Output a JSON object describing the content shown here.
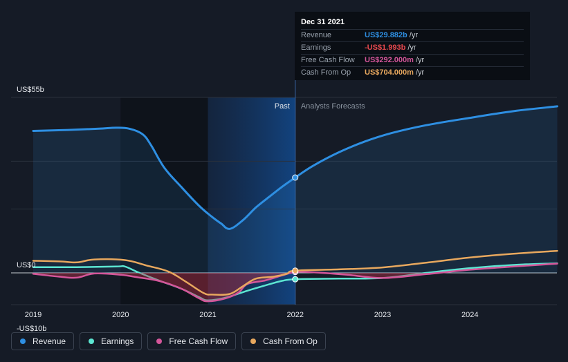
{
  "chart_data": {
    "type": "line",
    "x_ticks": [
      "2019",
      "2020",
      "2021",
      "2022",
      "2023",
      "2024"
    ],
    "y_ticks": [
      {
        "label": "US$55b",
        "value": 55
      },
      {
        "label": "US$0",
        "value": 0
      },
      {
        "label": "-US$10b",
        "value": -10
      }
    ],
    "ylim": [
      -10,
      55
    ],
    "xlim": [
      2018.8,
      2025.0
    ],
    "units": "US$ billions",
    "regions": {
      "past_label": "Past",
      "forecast_label": "Analysts Forecasts",
      "divider_x": 2022.0
    },
    "series": [
      {
        "name": "Revenue",
        "color": "#2e8fe2",
        "fill": true,
        "points": [
          [
            2019.0,
            44.5
          ],
          [
            2019.4,
            44.8
          ],
          [
            2019.75,
            45.2
          ],
          [
            2019.95,
            45.5
          ],
          [
            2020.1,
            45.2
          ],
          [
            2020.25,
            43.5
          ],
          [
            2020.35,
            40.0
          ],
          [
            2020.5,
            33.0
          ],
          [
            2020.7,
            26.8
          ],
          [
            2020.9,
            21.0
          ],
          [
            2021.05,
            17.5
          ],
          [
            2021.15,
            15.5
          ],
          [
            2021.25,
            13.8
          ],
          [
            2021.4,
            16.5
          ],
          [
            2021.55,
            20.5
          ],
          [
            2021.7,
            23.8
          ],
          [
            2021.85,
            27.0
          ],
          [
            2022.0,
            29.882
          ],
          [
            2022.2,
            33.5
          ],
          [
            2022.5,
            37.8
          ],
          [
            2022.8,
            41.2
          ],
          [
            2023.1,
            43.8
          ],
          [
            2023.5,
            46.3
          ],
          [
            2024.0,
            48.6
          ],
          [
            2024.5,
            50.7
          ],
          [
            2025.0,
            52.2
          ]
        ]
      },
      {
        "name": "Earnings",
        "color": "#5ce6d2",
        "points": [
          [
            2019.0,
            1.8
          ],
          [
            2019.5,
            1.8
          ],
          [
            2019.95,
            2.0
          ],
          [
            2020.05,
            2.0
          ],
          [
            2020.2,
            0.2
          ],
          [
            2020.45,
            -2.5
          ],
          [
            2020.7,
            -5.0
          ],
          [
            2020.9,
            -7.6
          ],
          [
            2021.0,
            -8.6
          ],
          [
            2021.2,
            -7.8
          ],
          [
            2021.45,
            -5.6
          ],
          [
            2021.7,
            -3.6
          ],
          [
            2021.85,
            -2.5
          ],
          [
            2022.0,
            -1.993
          ],
          [
            2022.5,
            -1.8
          ],
          [
            2023.0,
            -1.6
          ],
          [
            2023.5,
            0.0
          ],
          [
            2024.0,
            1.5
          ],
          [
            2024.5,
            2.5
          ],
          [
            2025.0,
            3.0
          ]
        ]
      },
      {
        "name": "Free Cash Flow",
        "color": "#d4569a",
        "fill_area": true,
        "points": [
          [
            2019.0,
            -0.3
          ],
          [
            2019.3,
            -1.2
          ],
          [
            2019.5,
            -1.5
          ],
          [
            2019.7,
            -0.2
          ],
          [
            2020.0,
            -0.6
          ],
          [
            2020.2,
            -1.4
          ],
          [
            2020.45,
            -2.6
          ],
          [
            2020.7,
            -5.0
          ],
          [
            2020.9,
            -8.0
          ],
          [
            2021.0,
            -8.9
          ],
          [
            2021.2,
            -8.0
          ],
          [
            2021.35,
            -6.2
          ],
          [
            2021.45,
            -3.5
          ],
          [
            2021.65,
            -2.4
          ],
          [
            2021.85,
            -0.8
          ],
          [
            2022.0,
            0.292
          ],
          [
            2022.2,
            0.2
          ],
          [
            2022.6,
            -0.6
          ],
          [
            2023.0,
            -1.6
          ],
          [
            2023.5,
            -0.4
          ],
          [
            2024.0,
            1.0
          ],
          [
            2024.5,
            2.0
          ],
          [
            2025.0,
            2.9
          ]
        ]
      },
      {
        "name": "Cash From Op",
        "color": "#e8a85e",
        "points": [
          [
            2019.0,
            3.8
          ],
          [
            2019.3,
            3.6
          ],
          [
            2019.5,
            3.3
          ],
          [
            2019.7,
            4.2
          ],
          [
            2020.05,
            4.0
          ],
          [
            2020.3,
            2.3
          ],
          [
            2020.55,
            0.4
          ],
          [
            2020.75,
            -2.8
          ],
          [
            2020.95,
            -6.3
          ],
          [
            2021.05,
            -6.8
          ],
          [
            2021.25,
            -6.6
          ],
          [
            2021.4,
            -4.2
          ],
          [
            2021.55,
            -1.8
          ],
          [
            2021.75,
            -1.2
          ],
          [
            2021.9,
            -0.3
          ],
          [
            2022.0,
            0.704
          ],
          [
            2022.5,
            1.1
          ],
          [
            2023.0,
            1.7
          ],
          [
            2023.5,
            3.2
          ],
          [
            2024.0,
            4.8
          ],
          [
            2024.5,
            6.0
          ],
          [
            2025.0,
            6.9
          ]
        ]
      }
    ],
    "highlight_x": 2022.0
  },
  "tooltip": {
    "date": "Dec 31 2021",
    "rows": [
      {
        "label": "Revenue",
        "value": "US$29.882b",
        "unit": "/yr",
        "color": "#2e8fe2"
      },
      {
        "label": "Earnings",
        "value": "-US$1.993b",
        "unit": "/yr",
        "color": "#e5484d"
      },
      {
        "label": "Free Cash Flow",
        "value": "US$292.000m",
        "unit": "/yr",
        "color": "#d4569a"
      },
      {
        "label": "Cash From Op",
        "value": "US$704.000m",
        "unit": "/yr",
        "color": "#e8a85e"
      }
    ]
  },
  "legend": [
    {
      "label": "Revenue",
      "color": "#2e8fe2"
    },
    {
      "label": "Earnings",
      "color": "#5ce6d2"
    },
    {
      "label": "Free Cash Flow",
      "color": "#d4569a"
    },
    {
      "label": "Cash From Op",
      "color": "#e8a85e"
    }
  ]
}
